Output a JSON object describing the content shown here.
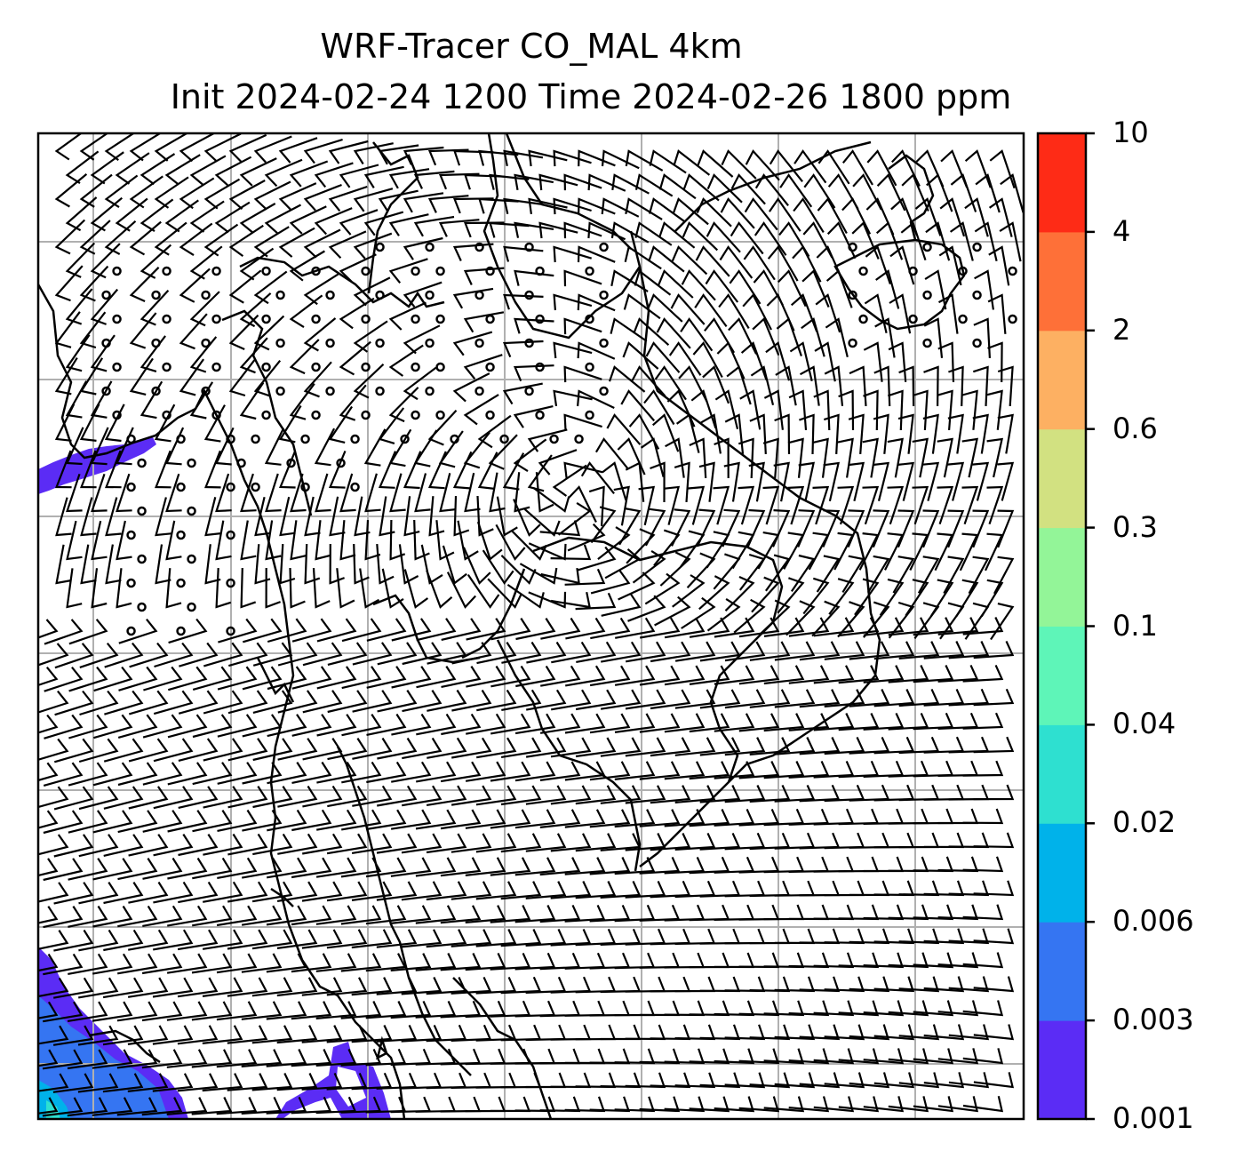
{
  "title": {
    "line1": "WRF-Tracer CO_MAL 4km",
    "line2": "Init 2024-02-24 1200 Time 2024-02-26 1800 ppm"
  },
  "colorbar": {
    "levels": [
      "0.001",
      "0.003",
      "0.006",
      "0.02",
      "0.04",
      "0.1",
      "0.3",
      "0.6",
      "2",
      "4",
      "10"
    ],
    "colors": [
      "#5b2cf5",
      "#3575f2",
      "#00b2ea",
      "#2ee0d0",
      "#5ef5b8",
      "#93f598",
      "#d2e181",
      "#fdb062",
      "#fe7038",
      "#fe2b16"
    ]
  },
  "map": {
    "field": "CO_MAL tracer concentration with wind barbs",
    "gridlines": true,
    "frame_color": "#000000",
    "grid_color": "#b0b0b0"
  }
}
